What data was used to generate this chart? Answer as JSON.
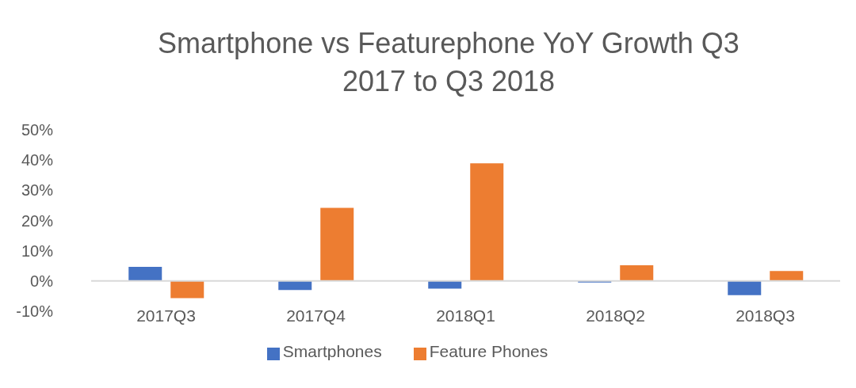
{
  "chart_data": {
    "type": "bar",
    "title": "Smartphone vs Featurephone YoY Growth Q3 2017 to Q3 2018",
    "categories": [
      "2017Q3",
      "2017Q4",
      "2018Q1",
      "2018Q2",
      "2018Q3"
    ],
    "series": [
      {
        "name": "Smartphones",
        "color": "#4472c4",
        "values": [
          4.7,
          -3.0,
          -2.5,
          -0.5,
          -4.7
        ]
      },
      {
        "name": "Feature Phones",
        "color": "#ed7d31",
        "values": [
          -5.7,
          24.2,
          38.9,
          5.2,
          3.3
        ]
      }
    ],
    "ylim": [
      -10,
      50
    ],
    "yticks": [
      {
        "value": -10,
        "label": "-10%"
      },
      {
        "value": 0,
        "label": "0%"
      },
      {
        "value": 10,
        "label": "10%"
      },
      {
        "value": 20,
        "label": "20%"
      },
      {
        "value": 30,
        "label": "30%"
      },
      {
        "value": 40,
        "label": "40%"
      },
      {
        "value": 50,
        "label": "50%"
      }
    ],
    "legend": "bottom"
  }
}
